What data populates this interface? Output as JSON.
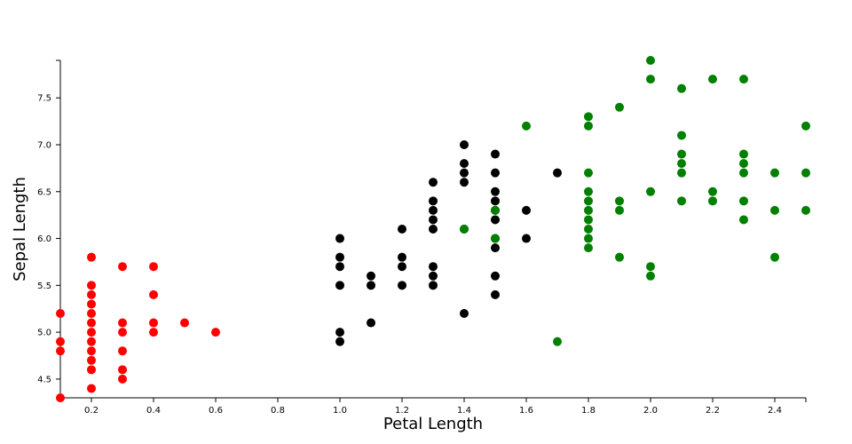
{
  "chart_data": {
    "type": "scatter",
    "xlabel": "Petal Length",
    "ylabel": "Sepal Length",
    "xlim": [
      0.1,
      2.5
    ],
    "ylim": [
      4.3,
      7.9
    ],
    "x_ticks": [
      0.2,
      0.4,
      0.6,
      0.8,
      1.0,
      1.2,
      1.4,
      1.6,
      1.8,
      2.0,
      2.2,
      2.4
    ],
    "y_ticks": [
      4.5,
      5.0,
      5.5,
      6.0,
      6.5,
      7.0,
      7.5
    ],
    "grid": false,
    "series": [
      {
        "color": "#ff0000",
        "points": [
          [
            0.1,
            5.2
          ],
          [
            0.1,
            4.9
          ],
          [
            0.1,
            4.8
          ],
          [
            0.1,
            4.3
          ],
          [
            0.2,
            5.8
          ],
          [
            0.2,
            5.5
          ],
          [
            0.2,
            5.4
          ],
          [
            0.2,
            5.3
          ],
          [
            0.2,
            5.2
          ],
          [
            0.2,
            5.1
          ],
          [
            0.2,
            5.0
          ],
          [
            0.2,
            4.9
          ],
          [
            0.2,
            4.8
          ],
          [
            0.2,
            4.7
          ],
          [
            0.2,
            4.6
          ],
          [
            0.2,
            4.4
          ],
          [
            0.3,
            5.7
          ],
          [
            0.3,
            5.1
          ],
          [
            0.3,
            5.0
          ],
          [
            0.3,
            4.8
          ],
          [
            0.3,
            4.6
          ],
          [
            0.3,
            4.5
          ],
          [
            0.4,
            5.7
          ],
          [
            0.4,
            5.4
          ],
          [
            0.4,
            5.1
          ],
          [
            0.4,
            5.0
          ],
          [
            0.5,
            5.1
          ],
          [
            0.6,
            5.0
          ]
        ]
      },
      {
        "color": "#000000",
        "points": [
          [
            1.0,
            6.0
          ],
          [
            1.0,
            5.8
          ],
          [
            1.0,
            5.7
          ],
          [
            1.0,
            5.5
          ],
          [
            1.0,
            5.0
          ],
          [
            1.0,
            4.9
          ],
          [
            1.1,
            5.6
          ],
          [
            1.1,
            5.5
          ],
          [
            1.1,
            5.1
          ],
          [
            1.2,
            6.1
          ],
          [
            1.2,
            5.8
          ],
          [
            1.2,
            5.7
          ],
          [
            1.2,
            5.5
          ],
          [
            1.3,
            6.6
          ],
          [
            1.3,
            6.4
          ],
          [
            1.3,
            6.3
          ],
          [
            1.3,
            6.2
          ],
          [
            1.3,
            6.1
          ],
          [
            1.3,
            5.7
          ],
          [
            1.3,
            5.6
          ],
          [
            1.3,
            5.5
          ],
          [
            1.4,
            7.0
          ],
          [
            1.4,
            6.8
          ],
          [
            1.4,
            6.7
          ],
          [
            1.4,
            6.6
          ],
          [
            1.4,
            6.1
          ],
          [
            1.4,
            5.2
          ],
          [
            1.5,
            6.9
          ],
          [
            1.5,
            6.7
          ],
          [
            1.5,
            6.5
          ],
          [
            1.5,
            6.4
          ],
          [
            1.5,
            6.3
          ],
          [
            1.5,
            6.2
          ],
          [
            1.5,
            6.0
          ],
          [
            1.5,
            5.9
          ],
          [
            1.5,
            5.6
          ],
          [
            1.5,
            5.4
          ],
          [
            1.6,
            6.3
          ],
          [
            1.6,
            6.0
          ],
          [
            1.7,
            6.7
          ]
        ]
      },
      {
        "color": "#008000",
        "points": [
          [
            1.4,
            6.1
          ],
          [
            1.5,
            6.3
          ],
          [
            1.5,
            6.0
          ],
          [
            1.6,
            7.2
          ],
          [
            1.7,
            4.9
          ],
          [
            1.8,
            7.3
          ],
          [
            1.8,
            7.2
          ],
          [
            1.8,
            6.7
          ],
          [
            1.8,
            6.5
          ],
          [
            1.8,
            6.4
          ],
          [
            1.8,
            6.3
          ],
          [
            1.8,
            6.2
          ],
          [
            1.8,
            6.1
          ],
          [
            1.8,
            6.0
          ],
          [
            1.8,
            5.9
          ],
          [
            1.9,
            7.4
          ],
          [
            1.9,
            6.4
          ],
          [
            1.9,
            6.3
          ],
          [
            1.9,
            5.8
          ],
          [
            2.0,
            7.9
          ],
          [
            2.0,
            7.7
          ],
          [
            2.0,
            6.5
          ],
          [
            2.0,
            5.7
          ],
          [
            2.0,
            5.6
          ],
          [
            2.1,
            7.6
          ],
          [
            2.1,
            7.1
          ],
          [
            2.1,
            6.9
          ],
          [
            2.1,
            6.8
          ],
          [
            2.1,
            6.7
          ],
          [
            2.1,
            6.4
          ],
          [
            2.2,
            7.7
          ],
          [
            2.2,
            6.5
          ],
          [
            2.2,
            6.4
          ],
          [
            2.3,
            7.7
          ],
          [
            2.3,
            6.9
          ],
          [
            2.3,
            6.8
          ],
          [
            2.3,
            6.7
          ],
          [
            2.3,
            6.4
          ],
          [
            2.3,
            6.2
          ],
          [
            2.4,
            6.7
          ],
          [
            2.4,
            6.3
          ],
          [
            2.4,
            5.8
          ],
          [
            2.5,
            7.2
          ],
          [
            2.5,
            6.7
          ],
          [
            2.5,
            6.3
          ]
        ]
      }
    ]
  }
}
